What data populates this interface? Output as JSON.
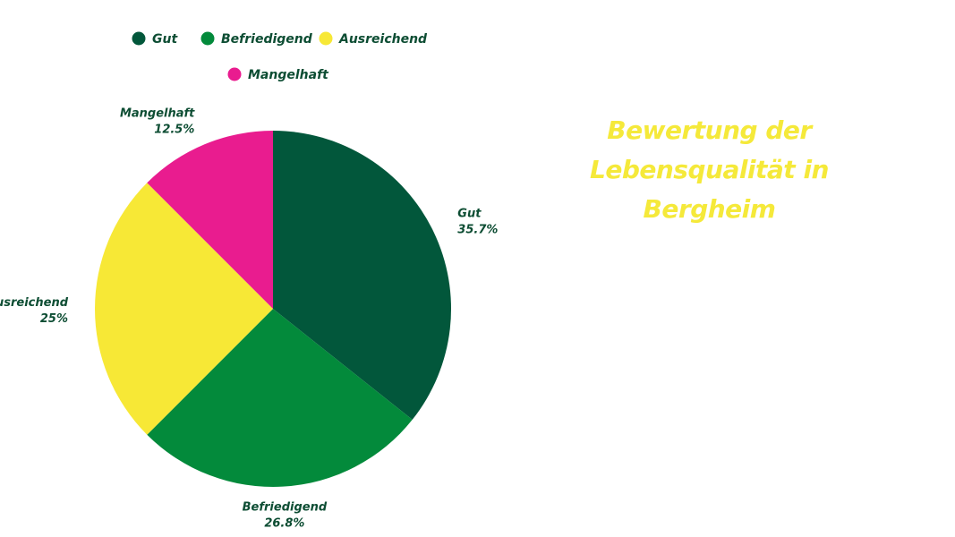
{
  "chart_data": {
    "type": "pie",
    "title": "Bewertung der Lebensqualität in Bergheim",
    "categories": [
      "Gut",
      "Befriedigend",
      "Ausreichend",
      "Mangelhaft"
    ],
    "values": [
      35.7,
      26.8,
      25,
      12.5
    ],
    "value_labels": [
      "35.7%",
      "26.8%",
      "25%",
      "12.5%"
    ],
    "colors": [
      "#02573b",
      "#038a3b",
      "#f7e836",
      "#e91c8f"
    ],
    "legend": {
      "placement": "top-left",
      "entries": [
        "Gut",
        "Befriedigend",
        "Ausreichend",
        "Mangelhaft"
      ]
    },
    "start_angle_deg": 0,
    "direction": "clockwise"
  }
}
